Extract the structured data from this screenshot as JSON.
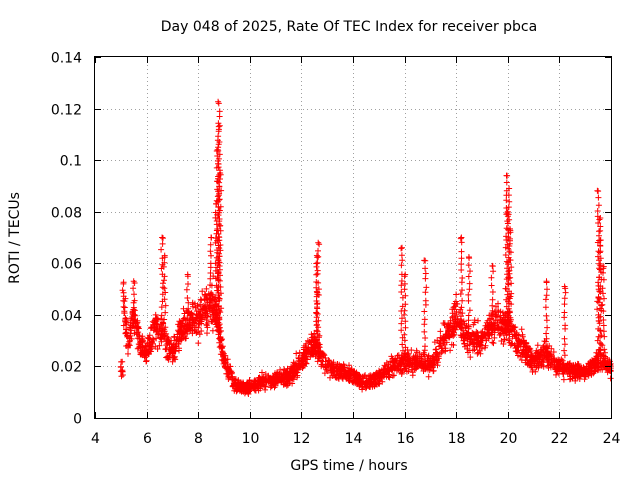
{
  "chart_data": {
    "type": "scatter",
    "title": "Day 048 of 2025, Rate Of TEC Index for receiver pbca",
    "xlabel": "GPS time / hours",
    "ylabel": "ROTI / TECUs",
    "xlim": [
      4,
      24
    ],
    "ylim": [
      0,
      0.14
    ],
    "xticks": [
      4,
      6,
      8,
      10,
      12,
      14,
      16,
      18,
      20,
      22,
      24
    ],
    "yticks": [
      0,
      0.02,
      0.04,
      0.06,
      0.08,
      0.1,
      0.12,
      0.14
    ],
    "xtick_labels": [
      "4",
      "6",
      "8",
      "10",
      "12",
      "14",
      "16",
      "18",
      "20",
      "22",
      "24"
    ],
    "ytick_labels": [
      "0",
      "0.02",
      "0.04",
      "0.06",
      "0.08",
      "0.1",
      "0.12",
      "0.14"
    ],
    "grid": true,
    "marker": "plus",
    "color": "#ff0000",
    "series": [
      {
        "name": "ROTI",
        "profile": [
          {
            "x": 5.1,
            "y": 0.045
          },
          {
            "x": 5.3,
            "y": 0.028
          },
          {
            "x": 5.5,
            "y": 0.04
          },
          {
            "x": 5.7,
            "y": 0.03
          },
          {
            "x": 6.0,
            "y": 0.025
          },
          {
            "x": 6.3,
            "y": 0.035
          },
          {
            "x": 6.6,
            "y": 0.033
          },
          {
            "x": 7.0,
            "y": 0.025
          },
          {
            "x": 7.4,
            "y": 0.035
          },
          {
            "x": 7.8,
            "y": 0.038
          },
          {
            "x": 8.2,
            "y": 0.04
          },
          {
            "x": 8.6,
            "y": 0.045
          },
          {
            "x": 9.0,
            "y": 0.022
          },
          {
            "x": 9.5,
            "y": 0.012
          },
          {
            "x": 10.0,
            "y": 0.012
          },
          {
            "x": 10.5,
            "y": 0.014
          },
          {
            "x": 11.0,
            "y": 0.015
          },
          {
            "x": 11.5,
            "y": 0.016
          },
          {
            "x": 12.0,
            "y": 0.022
          },
          {
            "x": 12.5,
            "y": 0.03
          },
          {
            "x": 13.0,
            "y": 0.02
          },
          {
            "x": 13.5,
            "y": 0.018
          },
          {
            "x": 14.0,
            "y": 0.016
          },
          {
            "x": 14.5,
            "y": 0.013
          },
          {
            "x": 15.0,
            "y": 0.016
          },
          {
            "x": 15.5,
            "y": 0.02
          },
          {
            "x": 16.0,
            "y": 0.022
          },
          {
            "x": 16.5,
            "y": 0.022
          },
          {
            "x": 17.0,
            "y": 0.02
          },
          {
            "x": 17.5,
            "y": 0.03
          },
          {
            "x": 18.0,
            "y": 0.038
          },
          {
            "x": 18.5,
            "y": 0.03
          },
          {
            "x": 19.0,
            "y": 0.03
          },
          {
            "x": 19.5,
            "y": 0.038
          },
          {
            "x": 20.0,
            "y": 0.035
          },
          {
            "x": 20.5,
            "y": 0.028
          },
          {
            "x": 21.0,
            "y": 0.022
          },
          {
            "x": 21.5,
            "y": 0.025
          },
          {
            "x": 22.0,
            "y": 0.02
          },
          {
            "x": 22.5,
            "y": 0.018
          },
          {
            "x": 23.0,
            "y": 0.018
          },
          {
            "x": 23.5,
            "y": 0.022
          },
          {
            "x": 24.0,
            "y": 0.02
          }
        ],
        "spikes": [
          {
            "x": 5.1,
            "y": 0.052
          },
          {
            "x": 5.5,
            "y": 0.053
          },
          {
            "x": 6.6,
            "y": 0.07
          },
          {
            "x": 6.7,
            "y": 0.063
          },
          {
            "x": 7.6,
            "y": 0.055
          },
          {
            "x": 8.5,
            "y": 0.07
          },
          {
            "x": 8.7,
            "y": 0.083
          },
          {
            "x": 8.75,
            "y": 0.104
          },
          {
            "x": 8.8,
            "y": 0.122
          },
          {
            "x": 8.85,
            "y": 0.095
          },
          {
            "x": 8.8,
            "y": 0.113
          },
          {
            "x": 12.65,
            "y": 0.068
          },
          {
            "x": 12.6,
            "y": 0.063
          },
          {
            "x": 12.6,
            "y": 0.049
          },
          {
            "x": 15.9,
            "y": 0.066
          },
          {
            "x": 16.0,
            "y": 0.055
          },
          {
            "x": 16.8,
            "y": 0.061
          },
          {
            "x": 18.2,
            "y": 0.07
          },
          {
            "x": 18.5,
            "y": 0.062
          },
          {
            "x": 19.4,
            "y": 0.059
          },
          {
            "x": 19.95,
            "y": 0.094
          },
          {
            "x": 20.05,
            "y": 0.089
          },
          {
            "x": 20.0,
            "y": 0.08
          },
          {
            "x": 20.1,
            "y": 0.072
          },
          {
            "x": 21.5,
            "y": 0.053
          },
          {
            "x": 22.2,
            "y": 0.051
          },
          {
            "x": 23.5,
            "y": 0.088
          },
          {
            "x": 23.55,
            "y": 0.077
          },
          {
            "x": 23.6,
            "y": 0.069
          },
          {
            "x": 23.7,
            "y": 0.058
          }
        ],
        "x_start": 5.0,
        "x_end": 24.0,
        "point_count": 2600,
        "spread": 0.008
      }
    ]
  }
}
